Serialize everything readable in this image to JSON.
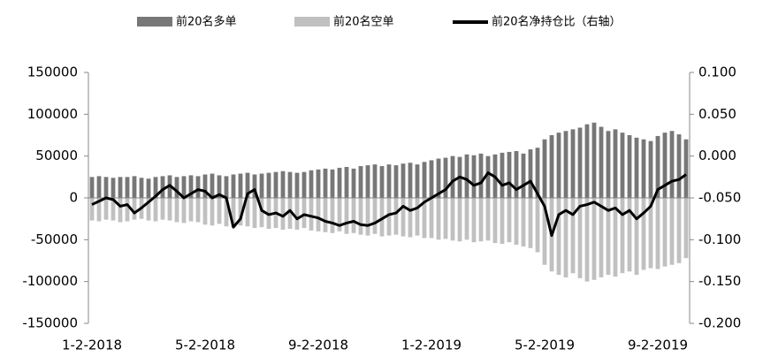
{
  "chart_data": {
    "type": "bar-line",
    "categories": [
      "1-2-2018",
      null,
      null,
      null,
      null,
      null,
      null,
      null,
      null,
      null,
      null,
      null,
      null,
      null,
      null,
      null,
      "5-2-2018",
      null,
      null,
      null,
      null,
      null,
      null,
      null,
      null,
      null,
      null,
      null,
      null,
      null,
      null,
      null,
      "9-2-2018",
      null,
      null,
      null,
      null,
      null,
      null,
      null,
      null,
      null,
      null,
      null,
      null,
      null,
      null,
      null,
      "1-2-2019",
      null,
      null,
      null,
      null,
      null,
      null,
      null,
      null,
      null,
      null,
      null,
      null,
      null,
      null,
      null,
      "5-2-2019",
      null,
      null,
      null,
      null,
      null,
      null,
      null,
      null,
      null,
      null,
      null,
      null,
      null,
      null,
      null,
      "9-2-2019",
      null,
      null,
      null,
      null
    ],
    "series": [
      {
        "name": "前20名多单",
        "type": "bar",
        "color": "#777777",
        "values": [
          25000,
          26000,
          25000,
          24000,
          25000,
          25000,
          26000,
          24000,
          23000,
          25000,
          26000,
          27000,
          25000,
          26000,
          27000,
          26000,
          28000,
          29000,
          27000,
          26000,
          28000,
          29000,
          30000,
          28000,
          29000,
          30000,
          31000,
          32000,
          31000,
          30000,
          31000,
          33000,
          34000,
          35000,
          34000,
          36000,
          37000,
          35000,
          38000,
          39000,
          40000,
          38000,
          40000,
          39000,
          41000,
          42000,
          40000,
          43000,
          45000,
          47000,
          48000,
          50000,
          49000,
          52000,
          51000,
          53000,
          50000,
          52000,
          54000,
          55000,
          56000,
          53000,
          58000,
          60000,
          70000,
          75000,
          78000,
          80000,
          82000,
          84000,
          88000,
          90000,
          85000,
          80000,
          82000,
          78000,
          75000,
          72000,
          70000,
          68000,
          74000,
          78000,
          80000,
          76000,
          70000
        ]
      },
      {
        "name": "前20名空单",
        "type": "bar",
        "color": "#c0c0c0",
        "values": [
          -27000,
          -28000,
          -26000,
          -27000,
          -29000,
          -28000,
          -26000,
          -25000,
          -27000,
          -28000,
          -26000,
          -27000,
          -29000,
          -30000,
          -28000,
          -29000,
          -32000,
          -33000,
          -31000,
          -34000,
          -35000,
          -33000,
          -34000,
          -36000,
          -35000,
          -37000,
          -36000,
          -38000,
          -37000,
          -38000,
          -36000,
          -39000,
          -40000,
          -41000,
          -42000,
          -40000,
          -43000,
          -42000,
          -44000,
          -45000,
          -43000,
          -46000,
          -45000,
          -44000,
          -46000,
          -47000,
          -45000,
          -48000,
          -48000,
          -50000,
          -49000,
          -51000,
          -52000,
          -50000,
          -53000,
          -52000,
          -51000,
          -54000,
          -55000,
          -53000,
          -56000,
          -58000,
          -60000,
          -65000,
          -80000,
          -88000,
          -92000,
          -95000,
          -90000,
          -96000,
          -100000,
          -98000,
          -95000,
          -92000,
          -94000,
          -90000,
          -88000,
          -92000,
          -86000,
          -84000,
          -85000,
          -82000,
          -80000,
          -78000,
          -72000
        ]
      },
      {
        "name": "前20名净持仓比（右轴）",
        "type": "line",
        "axis": "y2",
        "color": "#000000",
        "values": [
          -0.058,
          -0.054,
          -0.05,
          -0.052,
          -0.06,
          -0.058,
          -0.068,
          -0.062,
          -0.055,
          -0.048,
          -0.04,
          -0.035,
          -0.042,
          -0.05,
          -0.045,
          -0.04,
          -0.042,
          -0.05,
          -0.046,
          -0.05,
          -0.085,
          -0.075,
          -0.045,
          -0.04,
          -0.065,
          -0.07,
          -0.068,
          -0.072,
          -0.065,
          -0.075,
          -0.07,
          -0.072,
          -0.074,
          -0.078,
          -0.08,
          -0.083,
          -0.08,
          -0.078,
          -0.082,
          -0.083,
          -0.08,
          -0.075,
          -0.07,
          -0.068,
          -0.06,
          -0.065,
          -0.062,
          -0.055,
          -0.05,
          -0.045,
          -0.04,
          -0.03,
          -0.025,
          -0.028,
          -0.035,
          -0.032,
          -0.02,
          -0.025,
          -0.035,
          -0.032,
          -0.04,
          -0.035,
          -0.03,
          -0.045,
          -0.06,
          -0.095,
          -0.07,
          -0.065,
          -0.07,
          -0.06,
          -0.058,
          -0.055,
          -0.06,
          -0.065,
          -0.062,
          -0.07,
          -0.065,
          -0.075,
          -0.068,
          -0.06,
          -0.04,
          -0.035,
          -0.03,
          -0.028,
          -0.022
        ]
      }
    ],
    "ylim": [
      -150000,
      150000
    ],
    "yticks": [
      -150000,
      -100000,
      -50000,
      0,
      50000,
      100000,
      150000
    ],
    "y2lim": [
      -0.2,
      0.1
    ],
    "y2ticks": [
      {
        "value": -0.2,
        "label": "-0.200"
      },
      {
        "value": -0.15,
        "label": "-0.150"
      },
      {
        "value": -0.1,
        "label": "-0.100"
      },
      {
        "value": -0.05,
        "label": "-0.050"
      },
      {
        "value": 0,
        "label": "0.000"
      },
      {
        "value": 0.05,
        "label": "0.050"
      },
      {
        "value": 0.1,
        "label": "0.100"
      }
    ],
    "legend": "top"
  }
}
